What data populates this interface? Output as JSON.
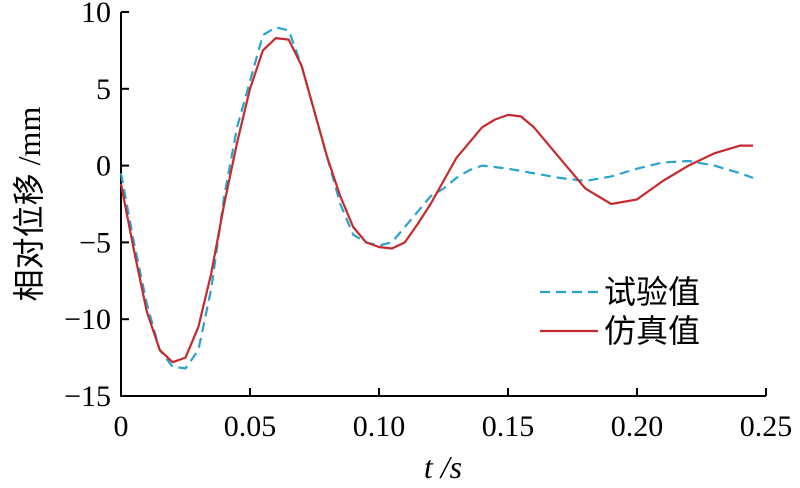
{
  "chart_data": {
    "type": "line",
    "xlabel": "t /s",
    "ylabel": "相对位移 /mm",
    "xlim": [
      0,
      0.25
    ],
    "ylim": [
      -15,
      10
    ],
    "xticks": [
      0,
      0.05,
      0.1,
      0.15,
      0.2,
      0.25
    ],
    "xtick_labels": [
      "0",
      "0.05",
      "0.10",
      "0.15",
      "0.20",
      "0.25"
    ],
    "yticks": [
      10,
      5,
      0,
      -5,
      -10,
      -15
    ],
    "ytick_labels": [
      "10",
      "5",
      "0",
      "−5",
      "−10",
      "−15"
    ],
    "grid": false,
    "legend_position": "right",
    "series": [
      {
        "name": "试验值",
        "color": "#29a3cc",
        "dash": "dashed",
        "x": [
          0,
          0.005,
          0.01,
          0.015,
          0.02,
          0.025,
          0.03,
          0.035,
          0.04,
          0.045,
          0.05,
          0.055,
          0.06,
          0.065,
          0.07,
          0.075,
          0.08,
          0.085,
          0.09,
          0.095,
          0.1,
          0.105,
          0.11,
          0.115,
          0.12,
          0.125,
          0.13,
          0.135,
          0.14,
          0.145,
          0.15,
          0.16,
          0.17,
          0.18,
          0.19,
          0.2,
          0.21,
          0.22,
          0.23,
          0.24,
          0.245
        ],
        "y": [
          -0.5,
          -5.0,
          -9.0,
          -12.0,
          -13.1,
          -13.2,
          -12.0,
          -8.0,
          -2.0,
          2.5,
          5.5,
          8.5,
          9.0,
          8.8,
          6.5,
          3.5,
          0.5,
          -2.5,
          -4.5,
          -5.0,
          -5.2,
          -5.0,
          -4.0,
          -3.0,
          -2.0,
          -1.5,
          -0.8,
          -0.3,
          0.0,
          -0.1,
          -0.2,
          -0.5,
          -0.8,
          -1.0,
          -0.7,
          -0.2,
          0.2,
          0.3,
          0.0,
          -0.5,
          -0.8
        ]
      },
      {
        "name": "仿真值",
        "color": "#c42a2e",
        "dash": "solid",
        "x": [
          0,
          0.005,
          0.01,
          0.015,
          0.02,
          0.025,
          0.03,
          0.035,
          0.04,
          0.045,
          0.05,
          0.055,
          0.06,
          0.065,
          0.07,
          0.075,
          0.08,
          0.085,
          0.09,
          0.095,
          0.1,
          0.105,
          0.11,
          0.115,
          0.12,
          0.125,
          0.13,
          0.135,
          0.14,
          0.145,
          0.15,
          0.155,
          0.16,
          0.17,
          0.18,
          0.19,
          0.2,
          0.21,
          0.22,
          0.23,
          0.24,
          0.245
        ],
        "y": [
          -1.2,
          -5.5,
          -9.5,
          -12.0,
          -12.8,
          -12.5,
          -10.5,
          -7.0,
          -2.5,
          1.5,
          5.0,
          7.5,
          8.3,
          8.2,
          6.5,
          3.5,
          0.5,
          -2.0,
          -4.0,
          -5.0,
          -5.3,
          -5.4,
          -5.0,
          -3.8,
          -2.5,
          -1.0,
          0.5,
          1.5,
          2.5,
          3.0,
          3.3,
          3.2,
          2.5,
          0.5,
          -1.5,
          -2.5,
          -2.2,
          -1.0,
          0.0,
          0.8,
          1.3,
          1.3
        ]
      }
    ]
  }
}
